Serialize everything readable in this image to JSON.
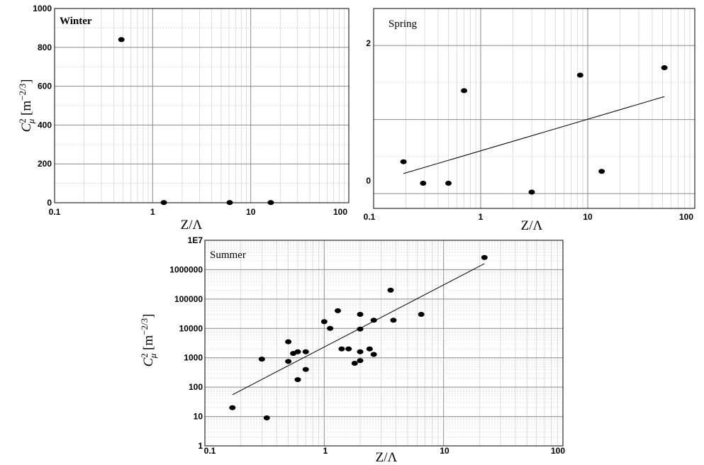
{
  "chart_data": [
    {
      "id": "winter",
      "type": "scatter",
      "panel_label": "Winter",
      "xlabel": "Z/Λ",
      "ylabel": "C_μ^2 [m^-2/3]",
      "x_scale": "log",
      "y_scale": "linear",
      "xlim": [
        0.1,
        100
      ],
      "ylim": [
        0,
        1000
      ],
      "x_ticks": [
        "0.1",
        "1",
        "10",
        "100"
      ],
      "y_ticks": [
        "0",
        "200",
        "400",
        "600",
        "800",
        "1000"
      ],
      "grid": true,
      "points": [
        {
          "x": 0.48,
          "y": 840
        },
        {
          "x": 1.3,
          "y": 1
        },
        {
          "x": 6.1,
          "y": 1
        },
        {
          "x": 16,
          "y": 1
        }
      ]
    },
    {
      "id": "spring",
      "type": "scatter",
      "panel_label": "Spring",
      "xlabel": "Z/Λ",
      "ylabel": "",
      "x_scale": "log",
      "y_scale": "linear",
      "xlim": [
        0.1,
        100
      ],
      "ylim": [
        -0.2,
        2.5
      ],
      "x_ticks": [
        "0.1",
        "1",
        "10",
        "100"
      ],
      "y_ticks": [
        "0",
        "2"
      ],
      "grid": true,
      "points": [
        {
          "x": 0.19,
          "y": 0.43
        },
        {
          "x": 0.29,
          "y": 0.14
        },
        {
          "x": 0.5,
          "y": 0.14
        },
        {
          "x": 0.7,
          "y": 1.39
        },
        {
          "x": 3.0,
          "y": 0.02
        },
        {
          "x": 8.5,
          "y": 1.6
        },
        {
          "x": 13.5,
          "y": 0.3
        },
        {
          "x": 52,
          "y": 1.7
        }
      ],
      "fit_line": [
        {
          "x": 0.19,
          "y": 0.27
        },
        {
          "x": 52,
          "y": 1.31
        }
      ]
    },
    {
      "id": "summer",
      "type": "scatter",
      "panel_label": "Summer",
      "xlabel": "Z/Λ",
      "ylabel": "C_μ^2 [m^-2/3]",
      "x_scale": "log",
      "y_scale": "log",
      "xlim": [
        0.1,
        100
      ],
      "ylim": [
        1,
        10000000
      ],
      "x_ticks": [
        "0.1",
        "1",
        "10",
        "100"
      ],
      "y_ticks": [
        "1",
        "10",
        "100",
        "1000",
        "10000",
        "100000",
        "1000000",
        "1E7"
      ],
      "grid": true,
      "points": [
        {
          "x": 0.17,
          "y": 20
        },
        {
          "x": 0.3,
          "y": 900
        },
        {
          "x": 0.33,
          "y": 9
        },
        {
          "x": 0.5,
          "y": 3500
        },
        {
          "x": 0.5,
          "y": 750
        },
        {
          "x": 0.55,
          "y": 1400
        },
        {
          "x": 0.6,
          "y": 1600
        },
        {
          "x": 0.6,
          "y": 180
        },
        {
          "x": 0.7,
          "y": 1600
        },
        {
          "x": 0.7,
          "y": 400
        },
        {
          "x": 1.0,
          "y": 17000
        },
        {
          "x": 1.12,
          "y": 10000
        },
        {
          "x": 1.3,
          "y": 40000
        },
        {
          "x": 1.4,
          "y": 2000
        },
        {
          "x": 1.6,
          "y": 2000
        },
        {
          "x": 1.8,
          "y": 650
        },
        {
          "x": 2.0,
          "y": 30000
        },
        {
          "x": 2.0,
          "y": 9500
        },
        {
          "x": 2.0,
          "y": 1600
        },
        {
          "x": 2.0,
          "y": 800
        },
        {
          "x": 2.4,
          "y": 2000
        },
        {
          "x": 2.6,
          "y": 19000
        },
        {
          "x": 2.6,
          "y": 1300
        },
        {
          "x": 3.6,
          "y": 200000
        },
        {
          "x": 3.8,
          "y": 19000
        },
        {
          "x": 6.5,
          "y": 30000
        },
        {
          "x": 22,
          "y": 2600000
        }
      ],
      "fit_line": [
        {
          "x": 0.17,
          "y": 55
        },
        {
          "x": 22,
          "y": 1600000
        }
      ]
    }
  ]
}
